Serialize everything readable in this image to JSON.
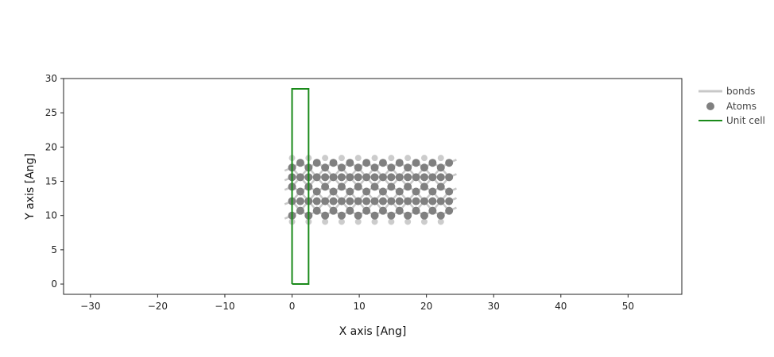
{
  "chart_data": {
    "type": "scatter",
    "title": "",
    "xlabel": "X axis [Ang]",
    "ylabel": "Y axis [Ang]",
    "xlim": [
      -34,
      58
    ],
    "ylim": [
      -1.5,
      30
    ],
    "xticks": [
      -30,
      -20,
      -10,
      0,
      10,
      20,
      30,
      40,
      50
    ],
    "yticks": [
      0,
      5,
      10,
      15,
      20,
      25,
      30
    ],
    "xtick_labels": [
      "−30",
      "−20",
      "−10",
      "0",
      "10",
      "20",
      "30",
      "40",
      "50"
    ],
    "ytick_labels": [
      "0",
      "5",
      "10",
      "15",
      "20",
      "25",
      "30"
    ],
    "grid": false,
    "legend": {
      "placement": "outside-top-right",
      "entries": [
        {
          "label": "bonds",
          "kind": "line",
          "color": "#c8c8c8"
        },
        {
          "label": "Atoms",
          "kind": "marker",
          "color": "#808080"
        },
        {
          "label": "Unit cell",
          "kind": "line",
          "color": "#1a8a1a"
        }
      ]
    },
    "colors": {
      "atoms": "#808080",
      "ghost_atoms": "#cccccc",
      "bonds": "#c8c8c8",
      "unit_cell": "#1a8a1a"
    },
    "series": [
      {
        "name": "Atoms",
        "atom_columns_x": [
          0,
          1.23,
          2.46,
          3.69,
          4.92,
          6.15,
          7.38,
          8.61,
          9.84,
          11.07,
          12.3,
          13.53,
          14.76,
          15.99,
          17.22,
          18.45,
          19.68,
          20.91,
          22.14,
          23.37
        ],
        "atom_rows_y_even_columns": [
          10.0,
          14.2,
          17.0
        ],
        "atom_rows_y_odd_columns": [
          10.7,
          13.5,
          17.7
        ],
        "atom_rows_y_all": [
          12.1,
          15.6
        ]
      },
      {
        "name": "ghost atoms",
        "x": [
          0,
          2.46,
          4.92,
          7.38,
          9.84,
          12.3,
          14.76,
          17.22,
          19.68,
          22.14
        ],
        "y_top": 18.4,
        "y_bottom": 9.1
      },
      {
        "name": "Unit cell",
        "x": [
          0,
          2.46,
          2.46,
          0,
          0
        ],
        "y": [
          0,
          0,
          28.5,
          28.5,
          0
        ]
      }
    ]
  }
}
